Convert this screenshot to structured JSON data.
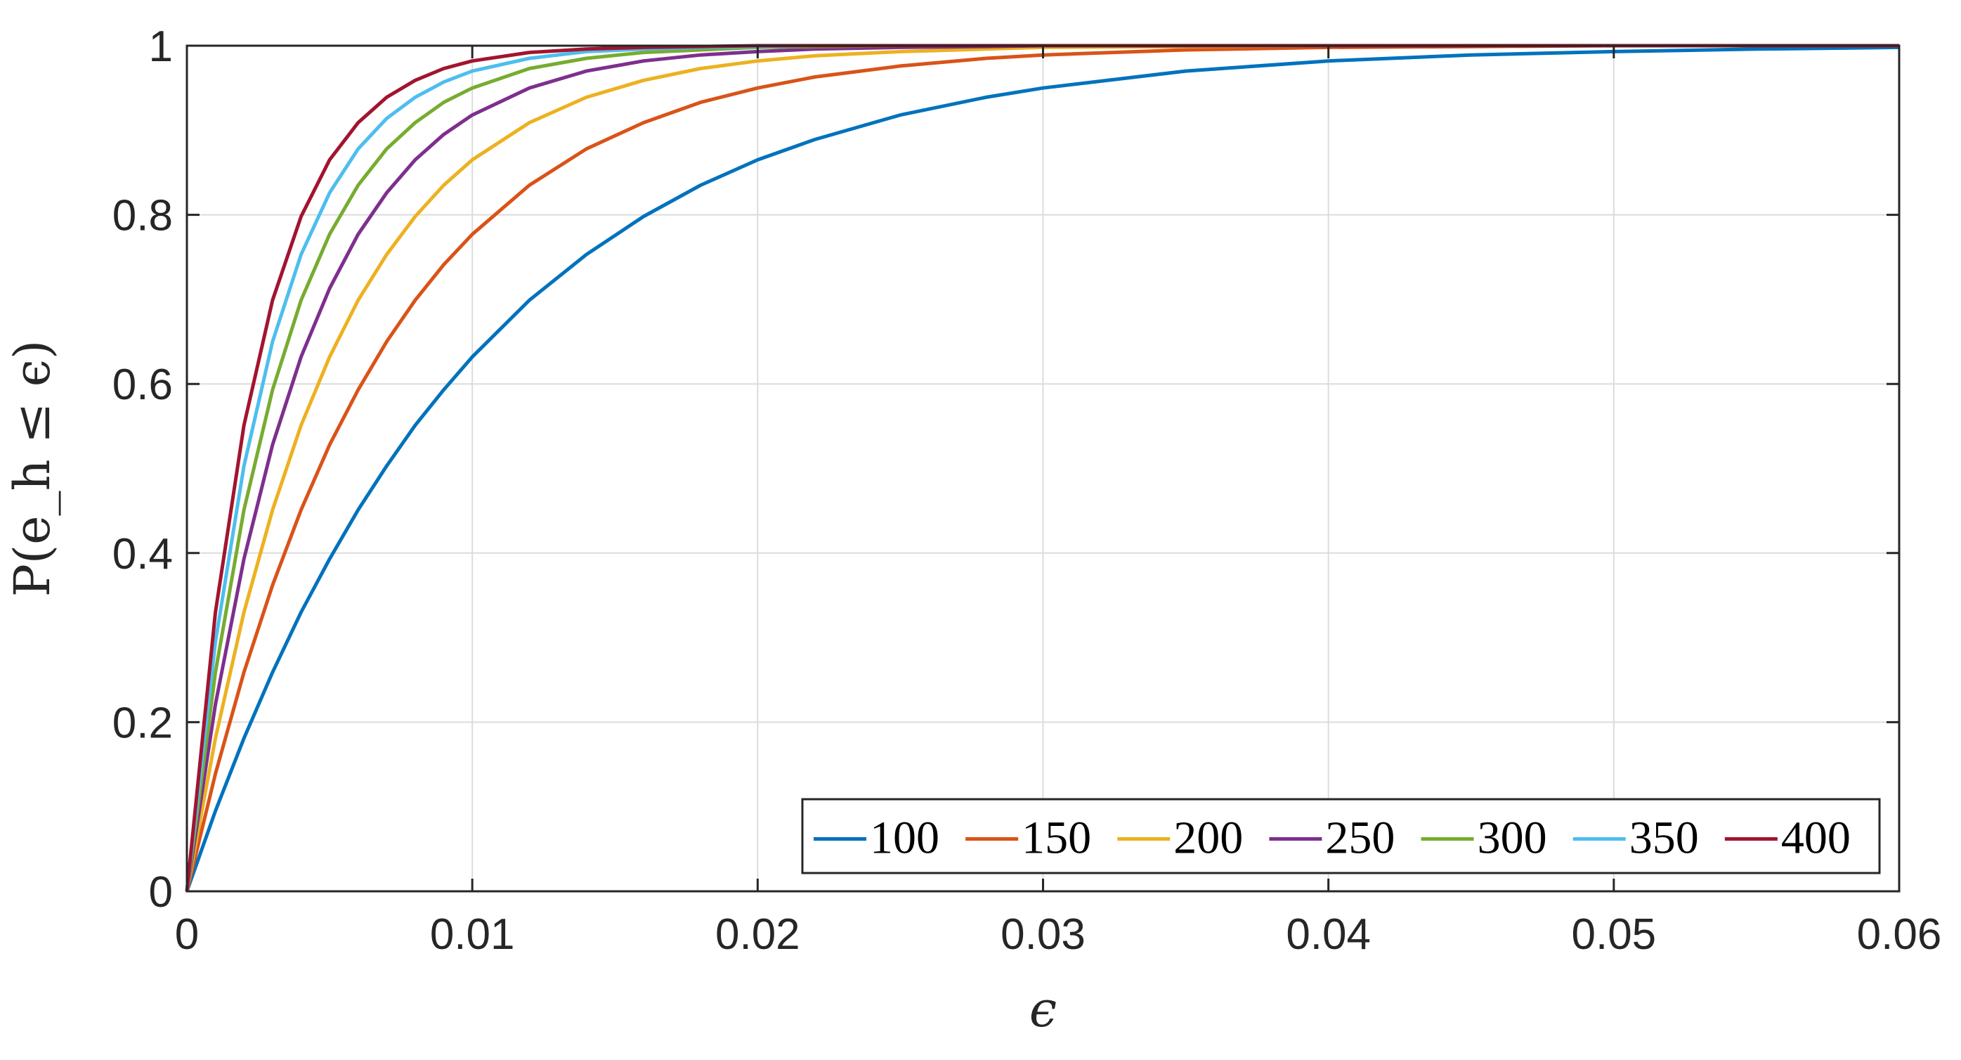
{
  "chart_data": {
    "type": "line",
    "xlabel": "ϵ",
    "ylabel": "P(e_h ≤ ϵ)",
    "xlim": [
      0,
      0.06
    ],
    "ylim": [
      0,
      1
    ],
    "xticks": [
      "0",
      "0.01",
      "0.02",
      "0.03",
      "0.04",
      "0.05",
      "0.06"
    ],
    "yticks": [
      "0",
      "0.2",
      "0.4",
      "0.6",
      "0.8",
      "1"
    ],
    "grid": true,
    "legend_position": "bottom-right",
    "legend_orientation": "horizontal",
    "x": [
      0,
      0.001,
      0.002,
      0.003,
      0.004,
      0.005,
      0.006,
      0.007,
      0.008,
      0.009,
      0.01,
      0.012,
      0.014,
      0.016,
      0.018,
      0.02,
      0.022,
      0.025,
      0.028,
      0.03,
      0.035,
      0.04,
      0.045,
      0.05,
      0.055,
      0.06
    ],
    "series": [
      {
        "name": "100",
        "color": "#0072BD",
        "values": [
          0,
          0.095,
          0.181,
          0.259,
          0.33,
          0.393,
          0.451,
          0.503,
          0.551,
          0.593,
          0.632,
          0.699,
          0.753,
          0.798,
          0.835,
          0.865,
          0.889,
          0.918,
          0.939,
          0.95,
          0.97,
          0.982,
          0.989,
          0.993,
          0.996,
          0.998
        ]
      },
      {
        "name": "150",
        "color": "#D95319",
        "values": [
          0,
          0.139,
          0.259,
          0.362,
          0.451,
          0.528,
          0.593,
          0.65,
          0.699,
          0.741,
          0.777,
          0.835,
          0.878,
          0.909,
          0.933,
          0.95,
          0.963,
          0.976,
          0.985,
          0.989,
          0.995,
          0.998,
          0.999,
          1,
          1,
          1
        ]
      },
      {
        "name": "200",
        "color": "#EDB120",
        "values": [
          0,
          0.181,
          0.33,
          0.451,
          0.551,
          0.632,
          0.699,
          0.753,
          0.798,
          0.835,
          0.865,
          0.909,
          0.939,
          0.959,
          0.973,
          0.982,
          0.988,
          0.993,
          0.996,
          0.998,
          0.999,
          1,
          1,
          1,
          1,
          1
        ]
      },
      {
        "name": "250",
        "color": "#7E2F8E",
        "values": [
          0,
          0.221,
          0.393,
          0.528,
          0.632,
          0.713,
          0.777,
          0.826,
          0.865,
          0.895,
          0.918,
          0.95,
          0.97,
          0.982,
          0.989,
          0.993,
          0.996,
          0.998,
          0.999,
          1,
          1,
          1,
          1,
          1,
          1,
          1
        ]
      },
      {
        "name": "300",
        "color": "#77AC30",
        "values": [
          0,
          0.259,
          0.451,
          0.593,
          0.699,
          0.777,
          0.835,
          0.878,
          0.909,
          0.933,
          0.95,
          0.973,
          0.985,
          0.992,
          0.995,
          0.998,
          0.999,
          1,
          1,
          1,
          1,
          1,
          1,
          1,
          1,
          1
        ]
      },
      {
        "name": "350",
        "color": "#4DBEEE",
        "values": [
          0,
          0.295,
          0.503,
          0.65,
          0.753,
          0.826,
          0.878,
          0.914,
          0.939,
          0.957,
          0.97,
          0.985,
          0.993,
          0.996,
          0.998,
          0.999,
          1,
          1,
          1,
          1,
          1,
          1,
          1,
          1,
          1,
          1
        ]
      },
      {
        "name": "400",
        "color": "#A2142F",
        "values": [
          0,
          0.33,
          0.551,
          0.699,
          0.798,
          0.865,
          0.909,
          0.939,
          0.959,
          0.973,
          0.982,
          0.992,
          0.996,
          0.998,
          0.999,
          1,
          1,
          1,
          1,
          1,
          1,
          1,
          1,
          1,
          1,
          1
        ]
      }
    ]
  }
}
